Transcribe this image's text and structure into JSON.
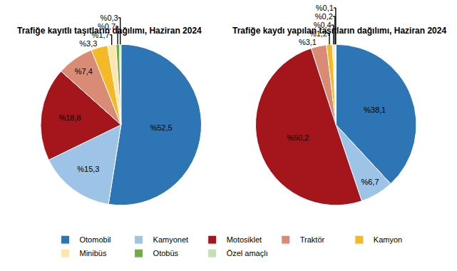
{
  "chart_data": [
    {
      "type": "pie",
      "title": "Trafiğe kayıtlı taşıtların dağılımı, Haziran 2024",
      "categories": [
        "Otomobil",
        "Kamyonet",
        "Motosiklet",
        "Traktör",
        "Kamyon",
        "Minibüs",
        "Otobüs",
        "Özel amaçlı"
      ],
      "values": [
        52.5,
        15.3,
        18.8,
        7.4,
        3.3,
        1.7,
        0.7,
        0.3
      ],
      "value_labels": [
        "%52,5",
        "%15,3",
        "%18,8",
        "%7,4",
        "%3,3",
        "%1,7",
        "%0,7",
        "%0,3"
      ],
      "colors": [
        "#2e75b6",
        "#9dc3e6",
        "#a5161c",
        "#d98b76",
        "#f5b928",
        "#fde5b0",
        "#70ad47",
        "#c5e0b4"
      ],
      "data_labels": true,
      "legend": "bottom"
    },
    {
      "type": "pie",
      "title": "Trafiğe kaydı yapılan taşıtların dağılımı, Haziran 2024",
      "categories": [
        "Otomobil",
        "Kamyonet",
        "Motosiklet",
        "Traktör",
        "Kamyon",
        "Minibüs",
        "Otobüs",
        "Özel amaçlı"
      ],
      "values": [
        38.1,
        6.7,
        50.2,
        3.1,
        1.2,
        0.4,
        0.2,
        0.1
      ],
      "value_labels": [
        "%38,1",
        "%6,7",
        "%50,2",
        "%3,1",
        "%1,2",
        "%0,4",
        "%0,2",
        "%0,1"
      ],
      "colors": [
        "#2e75b6",
        "#9dc3e6",
        "#a5161c",
        "#d98b76",
        "#f5b928",
        "#fde5b0",
        "#70ad47",
        "#c5e0b4"
      ],
      "data_labels": true
    }
  ]
}
